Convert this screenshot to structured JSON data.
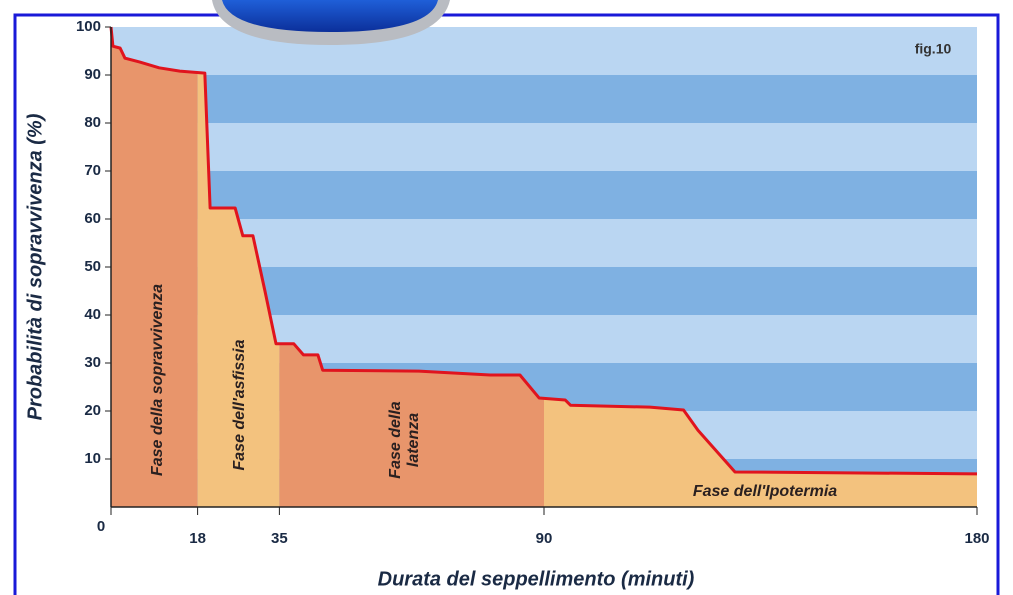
{
  "chart_data": {
    "type": "line",
    "ylabel": "Probabilità di sopravvivenza (%)",
    "xlabel": "Durata del seppellimento (minuti)",
    "annotation": "fig.10",
    "x": [
      0,
      0.4,
      1.9,
      2.9,
      6,
      10,
      14.3,
      19.5,
      20.6,
      25.8,
      27.4,
      29.5,
      32,
      34.3,
      38,
      40,
      43,
      44,
      64,
      78.8,
      85,
      89,
      94.4,
      95.5,
      112,
      119,
      122,
      129.7,
      180
    ],
    "values": [
      100,
      96,
      95.6,
      93.5,
      92.7,
      91.5,
      90.8,
      90.4,
      62.3,
      62.3,
      56.5,
      56.5,
      45,
      34,
      34,
      31.7,
      31.7,
      28.5,
      28.3,
      27.5,
      27.5,
      22.7,
      22.3,
      21.2,
      20.8,
      20.2,
      16,
      7.3,
      6.9
    ],
    "color": "#e0141e",
    "xlim": [
      0,
      180
    ],
    "xticks": [
      0,
      18,
      35,
      90,
      180
    ],
    "ylim": [
      0,
      100
    ],
    "yticks": [
      10,
      20,
      30,
      40,
      50,
      60,
      70,
      80,
      90,
      100
    ],
    "band_colors": [
      "#7fb1e2",
      "#bad6f2"
    ],
    "phases": [
      {
        "label": [
          "Fase della sopravvivenza"
        ],
        "start": 0,
        "end": 18,
        "color": "#e8956b"
      },
      {
        "label": [
          "Fase dell'asfissia"
        ],
        "start": 18,
        "end": 35,
        "color": "#f3c27e"
      },
      {
        "label": [
          "Fase della",
          "latenza"
        ],
        "start": 35,
        "end": 90,
        "color": "#e8956b"
      },
      {
        "label": [
          "Fase dell'Ipotermia"
        ],
        "start": 90,
        "end": 180,
        "color": "#f3c27e"
      }
    ]
  }
}
